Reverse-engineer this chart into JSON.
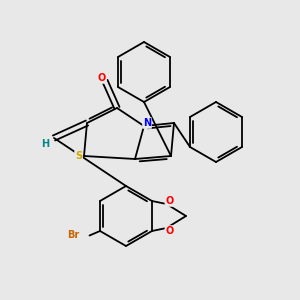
{
  "bg_color": "#e8e8e8",
  "atom_colors": {
    "N": "#0000ff",
    "O": "#ff0000",
    "S": "#ccaa00",
    "Br": "#cc6600",
    "C": "#000000",
    "H": "#008888"
  },
  "bond_color": "#000000",
  "lw": 1.3
}
